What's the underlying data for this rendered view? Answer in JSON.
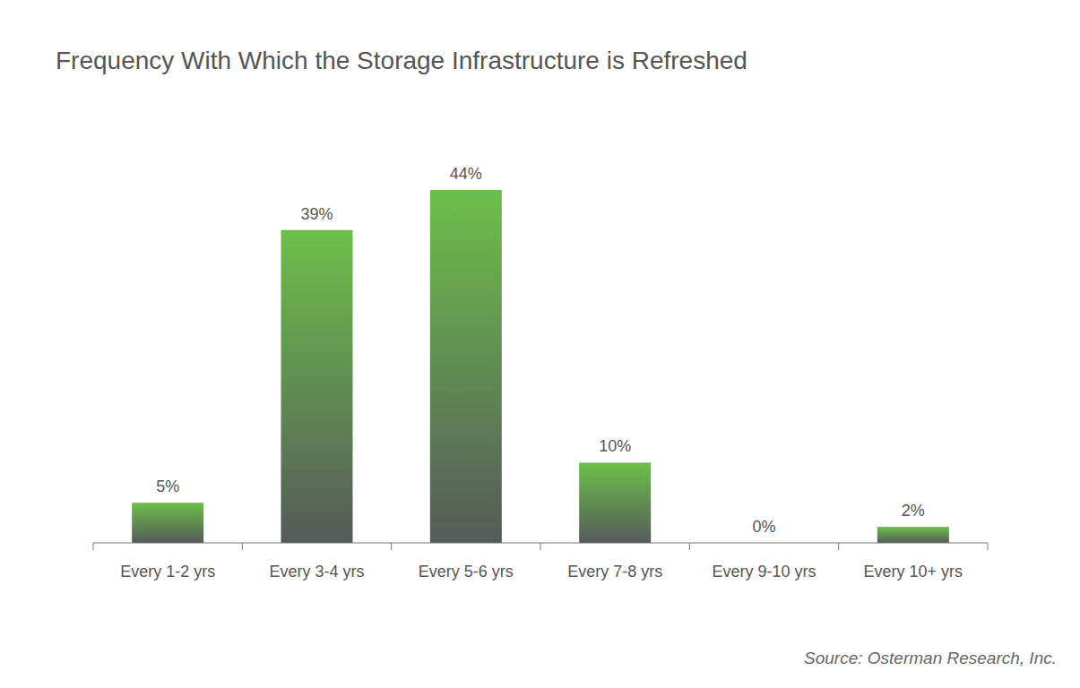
{
  "chart_data": {
    "type": "bar",
    "title": "Frequency With Which the Storage Infrastructure is Refreshed",
    "categories": [
      "Every 1-2 yrs",
      "Every 3-4 yrs",
      "Every 5-6 yrs",
      "Every 7-8 yrs",
      "Every 9-10 yrs",
      "Every 10+ yrs"
    ],
    "values": [
      5,
      39,
      44,
      10,
      0,
      2
    ],
    "value_labels": [
      "5%",
      "39%",
      "44%",
      "10%",
      "0%",
      "2%"
    ],
    "color": "#6cbf4a",
    "ylim": [
      0,
      44
    ],
    "data_labels": true,
    "tick_labels": "x",
    "grid": false,
    "source": "Source: Osterman Research, Inc."
  }
}
